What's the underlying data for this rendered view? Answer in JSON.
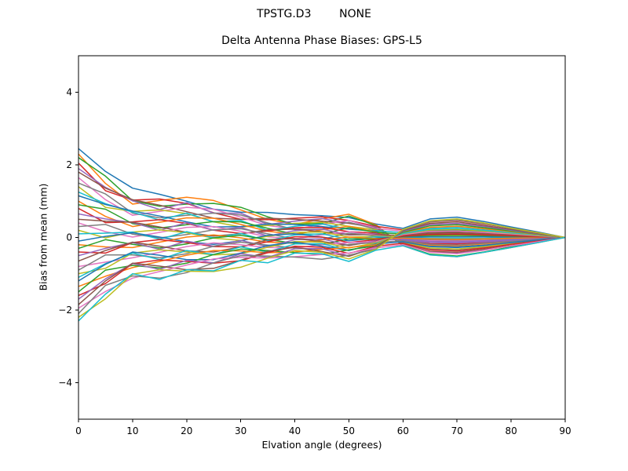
{
  "figure": {
    "background": "#ffffff",
    "axis_color": "#000000"
  },
  "chart_data": {
    "type": "line",
    "suptitle": "TPSTG.D3        NONE",
    "title": "Delta Antenna Phase Biases: GPS-L5",
    "xlabel": "Elvation angle (degrees)",
    "ylabel": "Bias from mean (mm)",
    "xlim": [
      0,
      90
    ],
    "ylim": [
      -5.01,
      5.01
    ],
    "grid": false,
    "legend": "none",
    "xticks": {
      "values": [
        0,
        10,
        20,
        30,
        40,
        50,
        60,
        70,
        80,
        90
      ],
      "labels": [
        "0",
        "10",
        "20",
        "30",
        "40",
        "50",
        "60",
        "70",
        "80",
        "90"
      ]
    },
    "yticks": {
      "values": [
        -4,
        -2,
        0,
        2,
        4
      ],
      "labels": [
        "−4",
        "−2",
        "0",
        "2",
        "4"
      ]
    },
    "x": [
      0,
      5,
      10,
      15,
      20,
      25,
      30,
      35,
      40,
      45,
      50,
      55,
      60,
      65,
      70,
      75,
      80,
      85,
      90
    ],
    "series": [
      {
        "color": "#1f77b4",
        "values": [
          2.45,
          1.82,
          1.36,
          1.19,
          1.0,
          0.78,
          0.7,
          0.69,
          0.63,
          0.6,
          0.55,
          0.37,
          0.25,
          0.51,
          0.56,
          0.44,
          0.29,
          0.15,
          0
        ]
      },
      {
        "color": "#ff7f0e",
        "values": [
          2.3,
          1.49,
          0.92,
          1.02,
          1.11,
          1.02,
          0.76,
          0.5,
          0.36,
          0.51,
          0.64,
          0.35,
          -0.23,
          -0.48,
          -0.53,
          -0.41,
          -0.28,
          -0.14,
          0
        ]
      },
      {
        "color": "#2ca02c",
        "values": [
          2.2,
          1.69,
          1.01,
          0.86,
          0.92,
          0.94,
          0.83,
          0.57,
          0.36,
          0.39,
          0.59,
          0.33,
          -0.22,
          -0.46,
          -0.51,
          -0.4,
          -0.26,
          -0.13,
          0
        ]
      },
      {
        "color": "#d62728",
        "values": [
          2.05,
          1.29,
          1.03,
          1.06,
          0.94,
          0.68,
          0.5,
          0.49,
          0.53,
          0.57,
          0.47,
          0.31,
          0.21,
          0.43,
          0.47,
          0.37,
          0.25,
          0.12,
          0
        ]
      },
      {
        "color": "#9467bd",
        "values": [
          1.9,
          1.38,
          1.01,
          0.77,
          0.96,
          0.67,
          0.67,
          0.36,
          0.45,
          0.52,
          0.4,
          0.29,
          -0.19,
          -0.4,
          -0.44,
          -0.34,
          -0.23,
          -0.11,
          0
        ]
      },
      {
        "color": "#8c564b",
        "values": [
          1.8,
          1.36,
          1.04,
          0.89,
          0.71,
          0.53,
          0.5,
          0.53,
          0.5,
          0.45,
          0.39,
          0.27,
          -0.18,
          -0.38,
          -0.41,
          -0.32,
          -0.22,
          -0.11,
          0
        ]
      },
      {
        "color": "#e377c2",
        "values": [
          1.65,
          1.04,
          0.61,
          0.72,
          0.83,
          0.78,
          0.56,
          0.33,
          0.23,
          0.36,
          0.47,
          0.25,
          0.17,
          0.35,
          0.38,
          0.3,
          0.2,
          0.1,
          0
        ]
      },
      {
        "color": "#7f7f7f",
        "values": [
          1.5,
          1.2,
          0.67,
          0.54,
          0.61,
          0.67,
          0.62,
          0.4,
          0.22,
          0.23,
          0.42,
          0.23,
          -0.15,
          -0.32,
          -0.35,
          -0.27,
          -0.18,
          -0.09,
          0
        ]
      },
      {
        "color": "#bcbd22",
        "values": [
          1.4,
          0.83,
          0.72,
          0.76,
          0.66,
          0.43,
          0.29,
          0.33,
          0.39,
          0.42,
          0.31,
          0.21,
          -0.14,
          -0.29,
          -0.32,
          -0.25,
          -0.17,
          -0.08,
          0
        ]
      },
      {
        "color": "#17becf",
        "values": [
          1.25,
          0.93,
          0.7,
          0.48,
          0.67,
          0.43,
          0.47,
          0.19,
          0.31,
          0.37,
          0.23,
          0.19,
          0.13,
          0.26,
          0.29,
          0.23,
          0.15,
          0.08,
          0
        ]
      },
      {
        "color": "#1f77b4",
        "values": [
          1.15,
          0.91,
          0.73,
          0.59,
          0.43,
          0.29,
          0.3,
          0.37,
          0.36,
          0.3,
          0.23,
          0.17,
          -0.12,
          -0.24,
          -0.26,
          -0.21,
          -0.14,
          -0.07,
          0
        ]
      },
      {
        "color": "#ff7f0e",
        "values": [
          1.0,
          0.58,
          0.3,
          0.42,
          0.54,
          0.53,
          0.36,
          0.17,
          0.09,
          0.21,
          0.31,
          0.15,
          -0.1,
          -0.21,
          -0.23,
          -0.18,
          -0.12,
          -0.06,
          0
        ]
      },
      {
        "color": "#2ca02c",
        "values": [
          0.9,
          0.78,
          0.38,
          0.26,
          0.35,
          0.44,
          0.43,
          0.25,
          0.09,
          0.09,
          0.27,
          0.14,
          0.09,
          0.19,
          0.21,
          0.16,
          0.11,
          0.05,
          0
        ]
      },
      {
        "color": "#d62728",
        "values": [
          0.8,
          0.41,
          0.43,
          0.49,
          0.39,
          0.2,
          0.11,
          0.18,
          0.27,
          0.28,
          0.16,
          0.12,
          -0.08,
          -0.17,
          -0.18,
          -0.14,
          -0.1,
          -0.05,
          0
        ]
      },
      {
        "color": "#9467bd",
        "values": [
          0.65,
          0.51,
          0.41,
          0.2,
          0.41,
          0.2,
          0.28,
          0.04,
          0.19,
          0.23,
          0.08,
          0.1,
          -0.07,
          -0.14,
          -0.15,
          -0.12,
          -0.08,
          -0.04,
          0
        ]
      },
      {
        "color": "#8c564b",
        "values": [
          0.5,
          0.45,
          0.42,
          0.29,
          0.14,
          0.04,
          0.1,
          0.21,
          0.23,
          0.16,
          0.07,
          0.08,
          0.05,
          0.11,
          0.12,
          0.09,
          0.06,
          0.03,
          0
        ]
      },
      {
        "color": "#e377c2",
        "values": [
          0.4,
          0.16,
          0.01,
          0.14,
          0.28,
          0.3,
          0.17,
          0.02,
          -0.04,
          0.07,
          0.16,
          0.06,
          -0.04,
          -0.08,
          -0.09,
          -0.07,
          -0.05,
          -0.02,
          0
        ]
      },
      {
        "color": "#7f7f7f",
        "values": [
          0.3,
          0.36,
          0.09,
          -0.01,
          0.08,
          0.21,
          0.24,
          0.1,
          -0.04,
          -0.05,
          0.12,
          0.05,
          -0.03,
          -0.06,
          -0.07,
          -0.05,
          -0.04,
          -0.02,
          0
        ]
      },
      {
        "color": "#bcbd22",
        "values": [
          0.2,
          -0.01,
          0.15,
          0.21,
          0.13,
          -0.02,
          -0.08,
          0.03,
          0.14,
          0.15,
          0.01,
          0.03,
          0.02,
          0.04,
          0.05,
          0.04,
          0.02,
          0.01,
          0
        ]
      },
      {
        "color": "#17becf",
        "values": [
          0.1,
          0.12,
          0.15,
          -0.05,
          0.16,
          -0.01,
          0.11,
          -0.09,
          0.07,
          0.1,
          -0.05,
          0.02,
          -0.01,
          -0.02,
          -0.02,
          -0.02,
          -0.01,
          -0.01,
          0
        ]
      },
      {
        "color": "#1f77b4",
        "values": [
          -0.1,
          0.03,
          0.13,
          0.01,
          -0.12,
          -0.19,
          -0.09,
          0.06,
          0.1,
          0.01,
          -0.09,
          -0.02,
          0.01,
          0.02,
          0.02,
          0.02,
          0.01,
          0.01,
          0
        ]
      },
      {
        "color": "#ff7f0e",
        "values": [
          -0.2,
          -0.26,
          -0.28,
          -0.13,
          0.01,
          0.07,
          -0.01,
          -0.13,
          -0.16,
          -0.07,
          0.01,
          -0.03,
          -0.02,
          -0.04,
          -0.05,
          -0.04,
          -0.02,
          -0.01,
          0
        ]
      },
      {
        "color": "#2ca02c",
        "values": [
          -0.3,
          -0.06,
          -0.19,
          -0.29,
          -0.18,
          -0.01,
          0.06,
          -0.06,
          -0.16,
          -0.19,
          -0.04,
          -0.05,
          0.03,
          0.06,
          0.07,
          0.05,
          0.04,
          0.02,
          0
        ]
      },
      {
        "color": "#d62728",
        "values": [
          -0.4,
          -0.43,
          -0.14,
          -0.06,
          -0.14,
          -0.25,
          -0.26,
          -0.12,
          0.02,
          0.01,
          -0.14,
          -0.06,
          0.04,
          0.08,
          0.09,
          0.07,
          0.05,
          0.02,
          0
        ]
      },
      {
        "color": "#9467bd",
        "values": [
          -0.5,
          -0.3,
          -0.14,
          -0.33,
          -0.1,
          -0.24,
          -0.08,
          -0.25,
          -0.06,
          -0.04,
          -0.21,
          -0.08,
          -0.05,
          -0.11,
          -0.12,
          -0.09,
          -0.06,
          -0.03,
          0
        ]
      },
      {
        "color": "#8c564b",
        "values": [
          -0.65,
          -0.36,
          -0.13,
          -0.24,
          -0.37,
          -0.4,
          -0.26,
          -0.06,
          -0.03,
          -0.11,
          -0.22,
          -0.1,
          0.07,
          0.14,
          0.15,
          0.12,
          0.08,
          0.04,
          0
        ]
      },
      {
        "color": "#e377c2",
        "values": [
          -0.8,
          -0.68,
          -0.56,
          -0.41,
          -0.25,
          -0.15,
          -0.2,
          -0.28,
          -0.29,
          -0.2,
          -0.14,
          -0.12,
          0.08,
          0.17,
          0.18,
          0.14,
          0.1,
          0.05,
          0
        ]
      },
      {
        "color": "#7f7f7f",
        "values": [
          -0.9,
          -0.48,
          -0.48,
          -0.56,
          -0.45,
          -0.24,
          -0.13,
          -0.21,
          -0.29,
          -0.33,
          -0.19,
          -0.14,
          -0.09,
          -0.19,
          -0.21,
          -0.16,
          -0.11,
          -0.05,
          0
        ]
      },
      {
        "color": "#bcbd22",
        "values": [
          -1.0,
          -0.85,
          -0.43,
          -0.34,
          -0.4,
          -0.48,
          -0.45,
          -0.27,
          -0.11,
          -0.13,
          -0.29,
          -0.15,
          0.1,
          0.21,
          0.23,
          0.18,
          0.12,
          0.06,
          0
        ]
      },
      {
        "color": "#17becf",
        "values": [
          -1.1,
          -0.72,
          -0.43,
          -0.61,
          -0.36,
          -0.47,
          -0.26,
          -0.4,
          -0.18,
          -0.17,
          -0.36,
          -0.17,
          0.11,
          0.23,
          0.25,
          0.2,
          0.13,
          0.07,
          0
        ]
      },
      {
        "color": "#1f77b4",
        "values": [
          -1.2,
          -0.74,
          -0.4,
          -0.49,
          -0.61,
          -0.61,
          -0.43,
          -0.22,
          -0.13,
          -0.24,
          -0.36,
          -0.18,
          -0.12,
          -0.25,
          -0.28,
          -0.22,
          -0.14,
          -0.07,
          0
        ]
      },
      {
        "color": "#ff7f0e",
        "values": [
          -1.35,
          -1.07,
          -0.83,
          -0.66,
          -0.49,
          -0.36,
          -0.37,
          -0.42,
          -0.4,
          -0.33,
          -0.28,
          -0.2,
          0.14,
          0.28,
          0.31,
          0.24,
          0.16,
          0.08,
          0
        ]
      },
      {
        "color": "#2ca02c",
        "values": [
          -1.5,
          -0.9,
          -0.77,
          -0.84,
          -0.71,
          -0.47,
          -0.32,
          -0.36,
          -0.42,
          -0.47,
          -0.34,
          -0.23,
          0.15,
          0.32,
          0.35,
          0.27,
          0.18,
          0.09,
          0
        ]
      },
      {
        "color": "#d62728",
        "values": [
          -1.6,
          -1.27,
          -0.72,
          -0.62,
          -0.66,
          -0.71,
          -0.64,
          -0.42,
          -0.24,
          -0.27,
          -0.44,
          -0.24,
          -0.16,
          -0.34,
          -0.37,
          -0.29,
          -0.19,
          -0.1,
          0
        ]
      },
      {
        "color": "#9467bd",
        "values": [
          -1.7,
          -1.14,
          -0.72,
          -0.88,
          -0.63,
          -0.7,
          -0.45,
          -0.55,
          -0.31,
          -0.31,
          -0.51,
          -0.26,
          0.17,
          0.36,
          0.39,
          0.31,
          0.2,
          0.1,
          0
        ]
      },
      {
        "color": "#8c564b",
        "values": [
          -1.85,
          -1.2,
          -0.71,
          -0.79,
          -0.89,
          -0.85,
          -0.63,
          -0.38,
          -0.27,
          -0.39,
          -0.52,
          -0.28,
          0.19,
          0.39,
          0.43,
          0.33,
          0.22,
          0.11,
          0
        ]
      },
      {
        "color": "#e377c2",
        "values": [
          -1.95,
          -1.49,
          -1.12,
          -0.94,
          -0.76,
          -0.59,
          -0.55,
          -0.57,
          -0.53,
          -0.47,
          -0.43,
          -0.29,
          -0.2,
          -0.41,
          -0.45,
          -0.35,
          -0.23,
          -0.12,
          0
        ]
      },
      {
        "color": "#7f7f7f",
        "values": [
          -2.1,
          -1.32,
          -1.06,
          -1.12,
          -0.97,
          -0.7,
          -0.5,
          -0.51,
          -0.54,
          -0.6,
          -0.49,
          -0.32,
          0.21,
          0.44,
          0.48,
          0.38,
          0.25,
          0.13,
          0
        ]
      },
      {
        "color": "#bcbd22",
        "values": [
          -2.2,
          -1.69,
          -1.01,
          -0.89,
          -0.93,
          -0.94,
          -0.82,
          -0.57,
          -0.36,
          -0.41,
          -0.59,
          -0.33,
          0.22,
          0.46,
          0.51,
          0.4,
          0.26,
          0.13,
          0
        ]
      },
      {
        "color": "#17becf",
        "values": [
          -2.3,
          -1.56,
          -1.0,
          -1.16,
          -0.89,
          -0.92,
          -0.63,
          -0.7,
          -0.43,
          -0.45,
          -0.66,
          -0.35,
          -0.23,
          -0.48,
          -0.53,
          -0.41,
          -0.28,
          -0.14,
          0
        ]
      }
    ]
  }
}
